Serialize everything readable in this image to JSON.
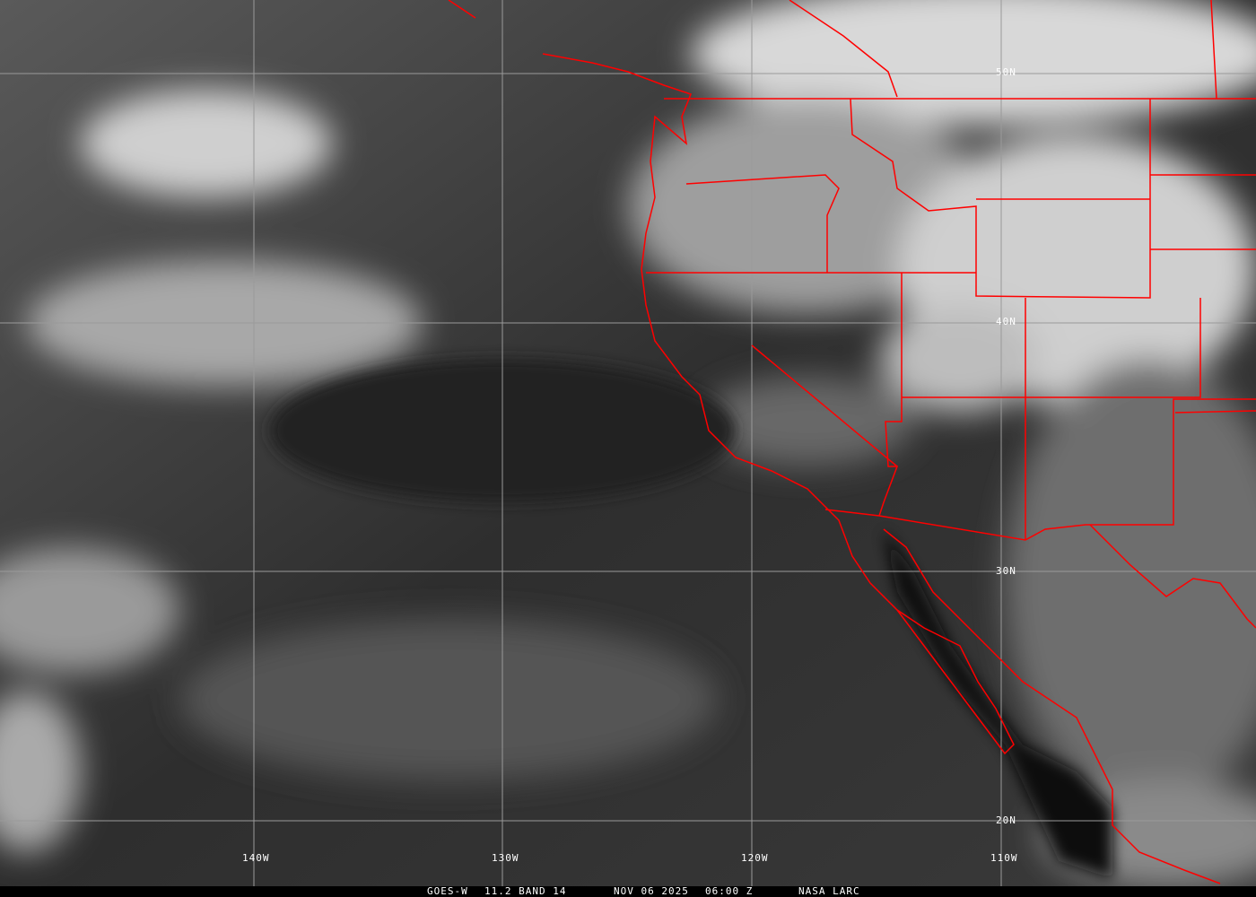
{
  "image": {
    "satellite": "GOES-W",
    "product": "11.2 BAND 14",
    "date": "NOV 06 2025",
    "time": "06:00 Z",
    "source": "NASA LARC"
  },
  "grid": {
    "longitudes": [
      "140W",
      "130W",
      "120W",
      "110W"
    ],
    "latitudes": [
      "50N",
      "40N",
      "30N",
      "20N"
    ]
  },
  "colors": {
    "boundaries": "#ff0000",
    "grid": "#9a9a9a",
    "caption_bg": "#000000",
    "caption_text": "#ffffff"
  }
}
